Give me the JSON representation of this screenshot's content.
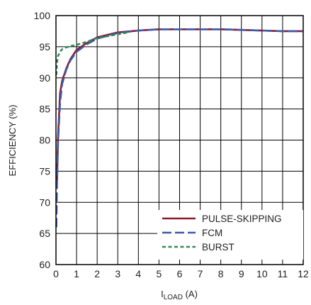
{
  "chart_data": {
    "type": "line",
    "title": "",
    "xlabel": {
      "main": "I",
      "sub": "LOAD",
      "unit": " (A)"
    },
    "ylabel": "EFFICIENCY (%)",
    "xlim": [
      0,
      12
    ],
    "ylim": [
      60,
      100
    ],
    "xticks": [
      "0",
      "1",
      "2",
      "3",
      "4",
      "5",
      "6",
      "7",
      "8",
      "9",
      "10",
      "11",
      "12"
    ],
    "yticks": [
      "60",
      "65",
      "70",
      "75",
      "80",
      "85",
      "90",
      "95",
      "100"
    ],
    "grid": true,
    "legend_position": "bottom-right",
    "series": [
      {
        "name": "PULSE-SKIPPING",
        "color": "#8b1a2e",
        "style": "solid",
        "x": [
          0.05,
          0.1,
          0.2,
          0.3,
          0.5,
          0.7,
          1.0,
          1.5,
          2,
          3,
          4,
          5,
          6,
          7,
          8,
          9,
          10,
          11,
          12
        ],
        "y": [
          73.5,
          80.5,
          87.5,
          89.5,
          91.5,
          93.0,
          94.5,
          95.6,
          96.5,
          97.3,
          97.6,
          97.8,
          97.8,
          97.8,
          97.8,
          97.7,
          97.6,
          97.5,
          97.5
        ]
      },
      {
        "name": "FCM",
        "color": "#3d5aa8",
        "style": "dashed",
        "x": [
          0.02,
          0.05,
          0.1,
          0.2,
          0.3,
          0.5,
          0.7,
          1.0,
          1.5,
          2,
          3,
          4,
          5,
          6,
          7,
          8,
          9,
          10,
          11,
          12
        ],
        "y": [
          66.0,
          73.0,
          79.5,
          86.0,
          89.0,
          91.3,
          92.8,
          94.2,
          95.4,
          96.3,
          97.2,
          97.6,
          97.8,
          97.8,
          97.8,
          97.8,
          97.7,
          97.6,
          97.5,
          97.5
        ]
      },
      {
        "name": "BURST",
        "color": "#2e8b57",
        "style": "dotted",
        "x": [
          0.02,
          0.05,
          0.1,
          0.2,
          0.3,
          0.5,
          0.7,
          1.0,
          1.5,
          2,
          3,
          3.5
        ],
        "y": [
          90.5,
          92.5,
          93.5,
          94.2,
          94.6,
          94.9,
          95.1,
          95.3,
          95.8,
          96.4,
          97.0,
          97.3
        ]
      }
    ]
  }
}
